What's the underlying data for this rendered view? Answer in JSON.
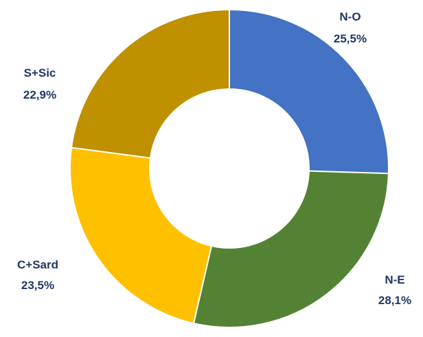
{
  "chart_data": {
    "type": "pie",
    "variant": "donut",
    "title": "",
    "categories": [
      "N-O",
      "N-E",
      "C+Sard",
      "S+Sic"
    ],
    "values": [
      25.5,
      28.1,
      23.5,
      22.9
    ],
    "value_labels": [
      "25,5%",
      "28,1%",
      "23,5%",
      "22,9%"
    ],
    "colors": [
      "#4472c4",
      "#548235",
      "#ffc000",
      "#bf9000"
    ],
    "start": "top",
    "direction": "clockwise",
    "legend": "none"
  }
}
